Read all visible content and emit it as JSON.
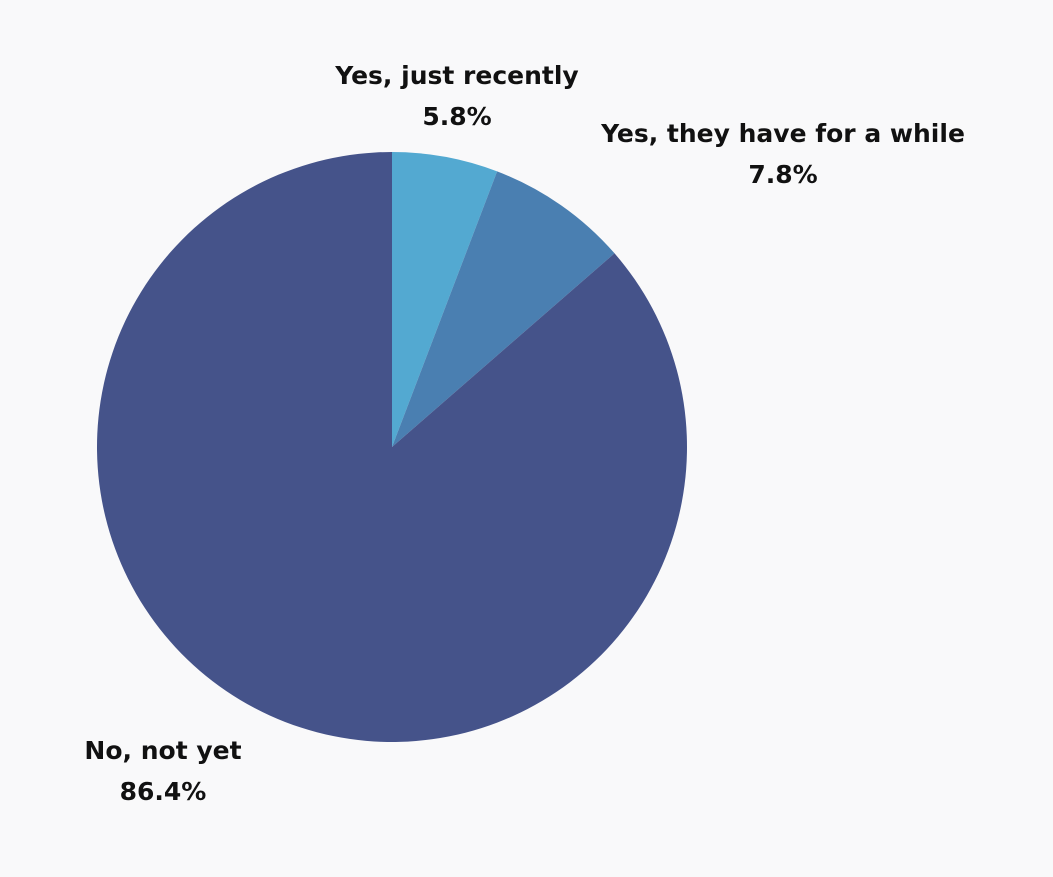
{
  "chart_data": {
    "type": "pie",
    "categories": [
      "Yes, just recently",
      "Yes, they have for a while",
      "No, not yet"
    ],
    "values": [
      5.8,
      7.8,
      86.4
    ],
    "value_labels": [
      "5.8%",
      "7.8%",
      "86.4%"
    ],
    "colors": [
      "#53a9d1",
      "#4a7fb1",
      "#45538a"
    ]
  }
}
